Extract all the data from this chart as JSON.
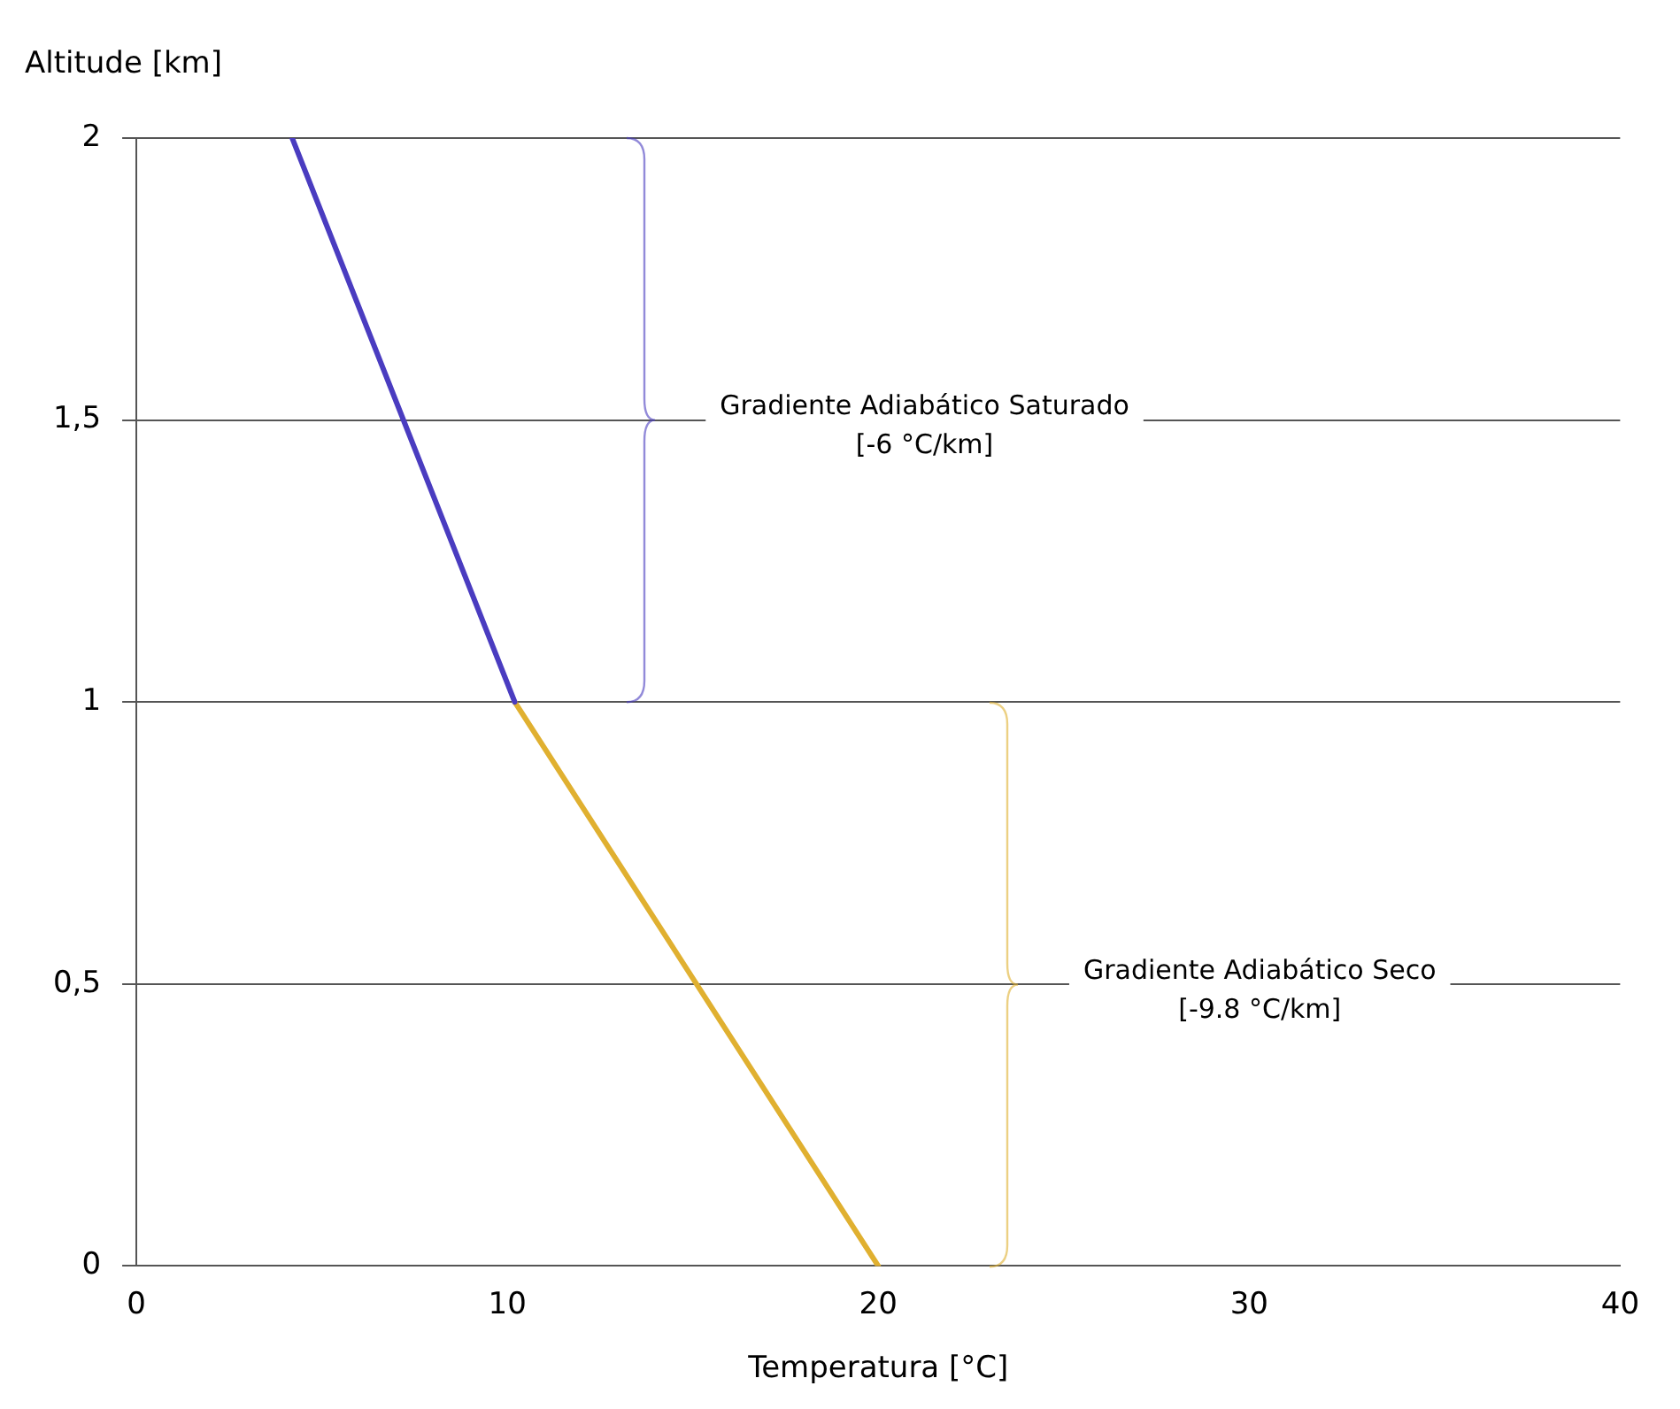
{
  "chart_data": {
    "type": "line",
    "xlabel": "Temperatura [°C]",
    "ylabel": "Altitude [km]",
    "series": [
      {
        "color": "#4a3cc0",
        "x": [
          10.2,
          4.2
        ],
        "values": [
          1,
          2
        ]
      },
      {
        "color": "#e0b030",
        "x": [
          20,
          10.2
        ],
        "values": [
          0,
          1
        ]
      }
    ],
    "xlim": [
      0,
      40
    ],
    "xticks": [
      0,
      10,
      20,
      30,
      40
    ],
    "ylim": [
      0,
      2
    ],
    "yticks": [
      0,
      {
        "value": 0.5,
        "label": "0,5"
      },
      1,
      {
        "value": 1.5,
        "label": "1,5"
      },
      2
    ],
    "grid": "y",
    "legend": false,
    "marker": "none",
    "line_style": "solid",
    "annotations": [
      "Gradiente Adiabático Saturado\n[-6 °C/km]",
      "Gradiente Adiabático Seco\n[-9.8 °C/km]"
    ]
  }
}
